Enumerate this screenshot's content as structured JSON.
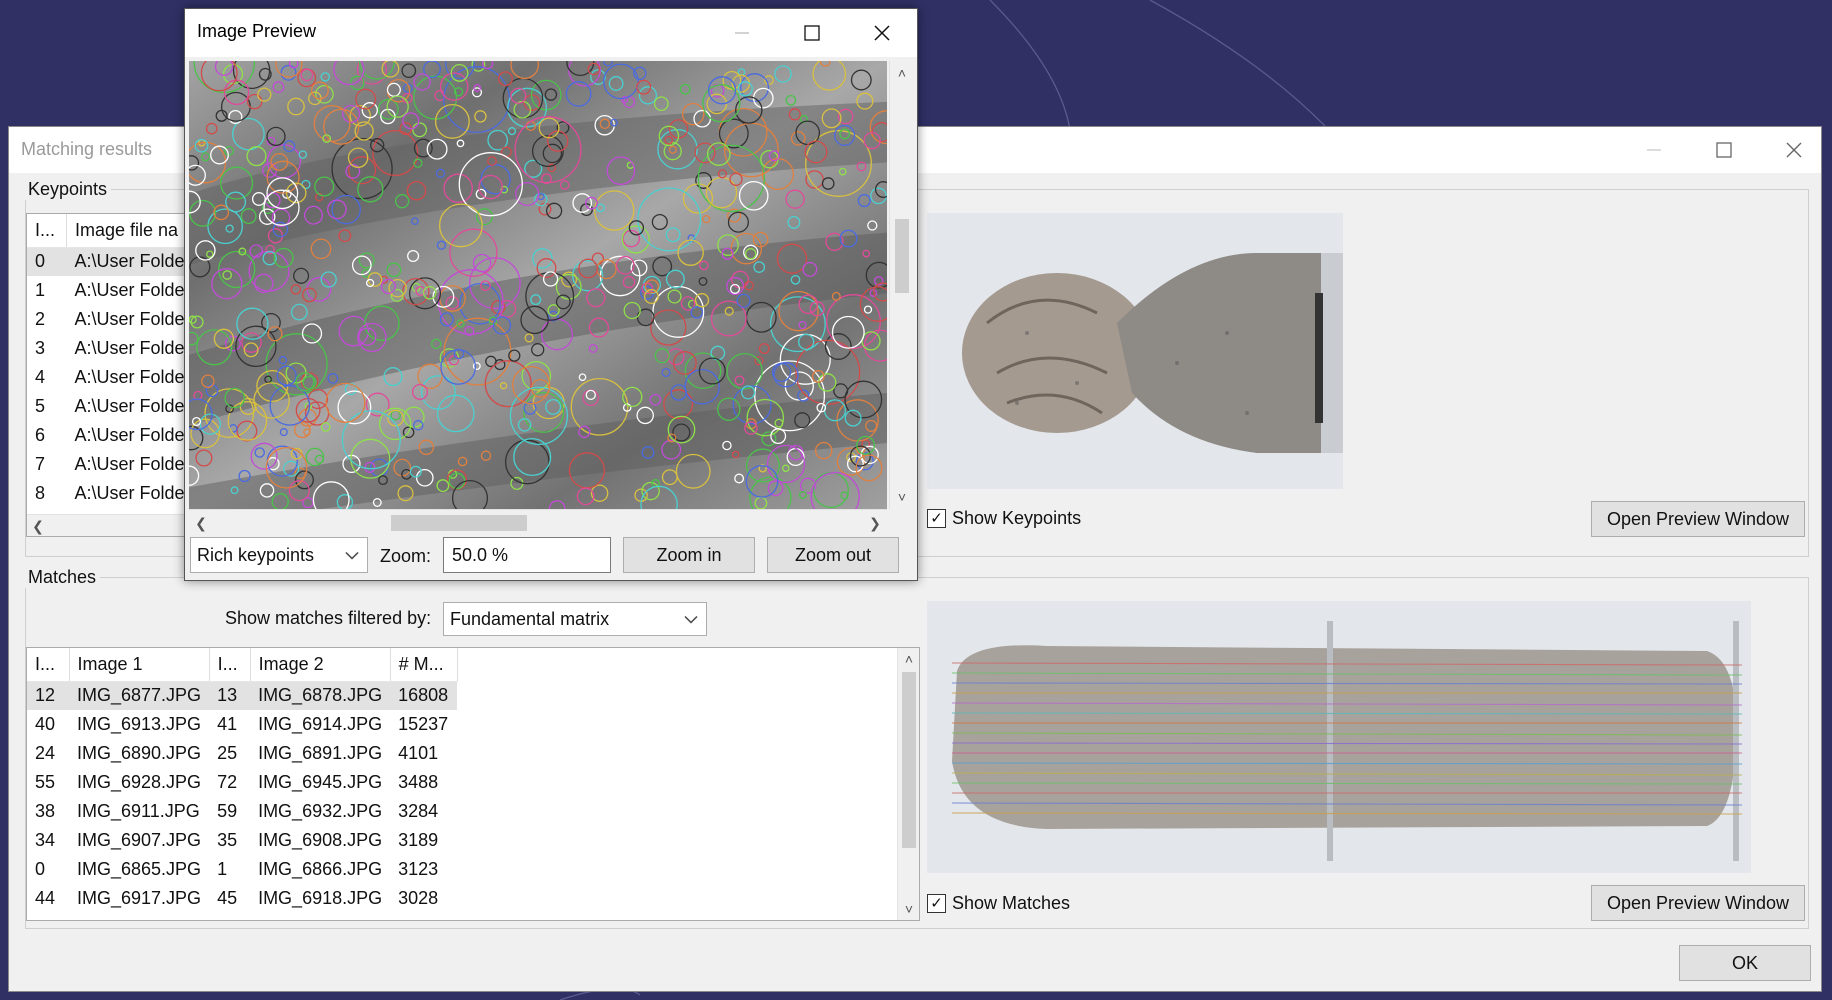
{
  "theme": {
    "desktop": "#303065",
    "window_bg": "#f0f0f0",
    "selected_row": "#e2e2e2"
  },
  "main_window": {
    "title": "Matching results",
    "keypoints_group": {
      "label": "Keypoints",
      "columns": [
        "I...",
        "Image file na"
      ],
      "rows": [
        {
          "id": "0",
          "file": "A:\\User Folde"
        },
        {
          "id": "1",
          "file": "A:\\User Folde"
        },
        {
          "id": "2",
          "file": "A:\\User Folde"
        },
        {
          "id": "3",
          "file": "A:\\User Folde"
        },
        {
          "id": "4",
          "file": "A:\\User Folde"
        },
        {
          "id": "5",
          "file": "A:\\User Folde"
        },
        {
          "id": "6",
          "file": "A:\\User Folde"
        },
        {
          "id": "7",
          "file": "A:\\User Folde"
        },
        {
          "id": "8",
          "file": "A:\\User Folde"
        }
      ],
      "show_keypoints_label": "Show Keypoints",
      "show_keypoints_checked": true,
      "open_preview_label": "Open Preview Window"
    },
    "matches_group": {
      "label": "Matches",
      "filter_label": "Show matches filtered by:",
      "filter_value": "Fundamental matrix",
      "columns": [
        "I...",
        "Image 1",
        "I...",
        "Image 2",
        "# M..."
      ],
      "rows": [
        [
          "12",
          "IMG_6877.JPG",
          "13",
          "IMG_6878.JPG",
          "16808"
        ],
        [
          "40",
          "IMG_6913.JPG",
          "41",
          "IMG_6914.JPG",
          "15237"
        ],
        [
          "24",
          "IMG_6890.JPG",
          "25",
          "IMG_6891.JPG",
          "4101"
        ],
        [
          "55",
          "IMG_6928.JPG",
          "72",
          "IMG_6945.JPG",
          "3488"
        ],
        [
          "38",
          "IMG_6911.JPG",
          "59",
          "IMG_6932.JPG",
          "3284"
        ],
        [
          "34",
          "IMG_6907.JPG",
          "35",
          "IMG_6908.JPG",
          "3189"
        ],
        [
          "0",
          "IMG_6865.JPG",
          "1",
          "IMG_6866.JPG",
          "3123"
        ],
        [
          "44",
          "IMG_6917.JPG",
          "45",
          "IMG_6918.JPG",
          "3028"
        ]
      ],
      "show_matches_label": "Show Matches",
      "show_matches_checked": true,
      "open_preview_label": "Open Preview Window"
    },
    "ok_label": "OK"
  },
  "preview_window": {
    "title": "Image Preview",
    "mode_value": "Rich keypoints",
    "zoom_label": "Zoom:",
    "zoom_value": "50.0 %",
    "zoom_in_label": "Zoom in",
    "zoom_out_label": "Zoom out"
  },
  "icons": {
    "minimize": "minimize-icon",
    "maximize": "maximize-icon",
    "close": "close-icon",
    "dropdown": "chevron-down-icon",
    "checkbox": "checkmark-icon"
  }
}
